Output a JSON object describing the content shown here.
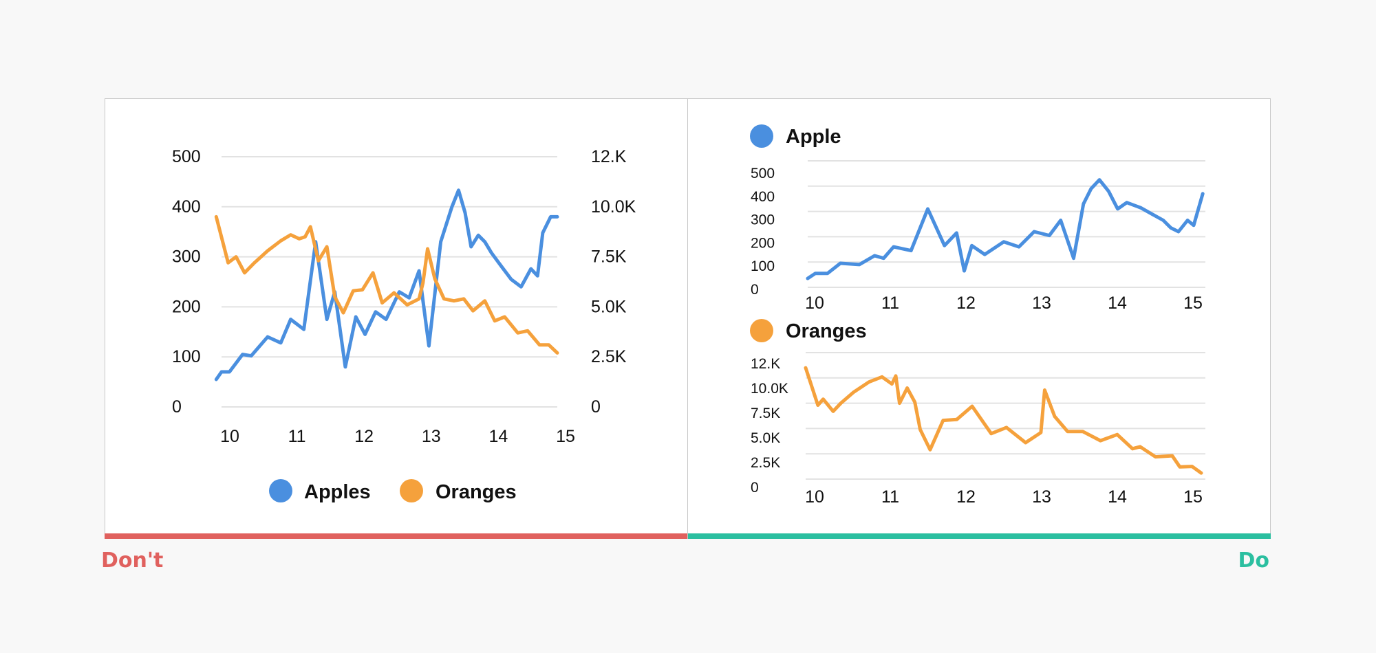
{
  "labels": {
    "dont": "Don't",
    "do": "Do"
  },
  "colors": {
    "apples": "#4a8fdf",
    "oranges": "#f5a13c",
    "dont": "#e0615e",
    "do": "#2bbfa0",
    "grid": "#e2e2e2"
  },
  "chart_data": [
    {
      "id": "dont",
      "type": "line",
      "title": "",
      "dual_axis": true,
      "x_ticks": [
        "10",
        "11",
        "12",
        "13",
        "14",
        "15"
      ],
      "xlim": [
        10,
        15.1
      ],
      "y_left": {
        "ticks": [
          "0",
          "100",
          "200",
          "300",
          "400",
          "500"
        ],
        "ylim": [
          0,
          500
        ]
      },
      "y_right": {
        "ticks": [
          "0",
          "2.5K",
          "5.0K",
          "7.5K",
          "10.0K",
          "12.K"
        ],
        "ylim": [
          0,
          12500
        ]
      },
      "grid": true,
      "legend": {
        "placement": "bottom",
        "items": [
          "Apples",
          "Oranges"
        ]
      },
      "series": [
        {
          "name": "Apples",
          "axis": "left",
          "color": "#4a8fdf",
          "x": [
            9.92,
            10.0,
            10.12,
            10.32,
            10.45,
            10.7,
            10.9,
            11.05,
            11.25,
            11.43,
            11.6,
            11.72,
            11.88,
            12.04,
            12.18,
            12.34,
            12.5,
            12.7,
            12.85,
            13.0,
            13.15,
            13.33,
            13.5,
            13.6,
            13.7,
            13.79,
            13.9,
            14.0,
            14.1,
            14.25,
            14.4,
            14.55,
            14.7,
            14.8,
            14.88,
            15.0,
            15.1
          ],
          "values": [
            55,
            70,
            70,
            105,
            102,
            140,
            128,
            175,
            155,
            330,
            175,
            230,
            80,
            180,
            145,
            190,
            175,
            230,
            218,
            272,
            122,
            330,
            400,
            433,
            388,
            320,
            343,
            330,
            308,
            281,
            255,
            240,
            276,
            262,
            348,
            380,
            380
          ]
        },
        {
          "name": "Oranges",
          "axis": "right",
          "color": "#f5a13c",
          "x": [
            9.92,
            10.1,
            10.22,
            10.35,
            10.5,
            10.7,
            10.9,
            11.05,
            11.18,
            11.27,
            11.35,
            11.47,
            11.6,
            11.72,
            11.85,
            12.0,
            12.14,
            12.3,
            12.44,
            12.62,
            12.82,
            13.0,
            13.06,
            13.13,
            13.24,
            13.38,
            13.53,
            13.68,
            13.82,
            14.0,
            14.15,
            14.3,
            14.5,
            14.65,
            14.83,
            14.97,
            15.1
          ],
          "values": [
            9500,
            7200,
            7500,
            6700,
            7200,
            7800,
            8300,
            8600,
            8400,
            8500,
            9000,
            7300,
            8000,
            5500,
            4700,
            5800,
            5850,
            6700,
            5200,
            5700,
            5100,
            5400,
            6200,
            7900,
            6400,
            5400,
            5300,
            5400,
            4800,
            5300,
            4300,
            4500,
            3700,
            3800,
            3100,
            3100,
            2700
          ]
        }
      ]
    },
    {
      "id": "do-apple",
      "type": "line",
      "title": "",
      "x_ticks": [
        "10",
        "11",
        "12",
        "13",
        "14",
        "15"
      ],
      "xlim": [
        9.92,
        15.1
      ],
      "y_ticks": [
        "0",
        "100",
        "200",
        "300",
        "400",
        "500"
      ],
      "ylim": [
        0,
        500
      ],
      "grid": true,
      "legend": {
        "placement": "top-left",
        "items": [
          "Apple"
        ]
      },
      "series": [
        {
          "name": "Apple",
          "color": "#4a8fdf",
          "x": [
            9.92,
            10.02,
            10.18,
            10.35,
            10.6,
            10.8,
            10.92,
            11.05,
            11.28,
            11.5,
            11.72,
            11.88,
            11.98,
            12.08,
            12.25,
            12.5,
            12.7,
            12.9,
            13.1,
            13.25,
            13.42,
            13.55,
            13.65,
            13.76,
            13.88,
            14.0,
            14.12,
            14.3,
            14.45,
            14.6,
            14.7,
            14.8,
            14.92,
            15.0,
            15.12
          ],
          "values": [
            35,
            55,
            55,
            95,
            90,
            125,
            115,
            160,
            145,
            310,
            165,
            215,
            65,
            165,
            130,
            180,
            160,
            220,
            205,
            265,
            115,
            330,
            390,
            425,
            380,
            310,
            335,
            315,
            290,
            265,
            235,
            220,
            265,
            245,
            370
          ]
        }
      ]
    },
    {
      "id": "do-oranges",
      "type": "line",
      "title": "",
      "x_ticks": [
        "10",
        "11",
        "12",
        "13",
        "14",
        "15"
      ],
      "xlim": [
        9.92,
        15.1
      ],
      "y_ticks": [
        "0",
        "2.5K",
        "5.0K",
        "7.5K",
        "10.0K",
        "12.K"
      ],
      "ylim": [
        0,
        12500
      ],
      "grid": true,
      "legend": {
        "placement": "top-left",
        "items": [
          "Oranges"
        ]
      },
      "series": [
        {
          "name": "Oranges",
          "color": "#f5a13c",
          "x": [
            9.92,
            10.08,
            10.15,
            10.28,
            10.38,
            10.55,
            10.75,
            10.92,
            11.05,
            11.1,
            11.15,
            11.25,
            11.35,
            11.42,
            11.55,
            11.72,
            11.9,
            12.1,
            12.35,
            12.55,
            12.8,
            13.0,
            13.05,
            13.18,
            13.35,
            13.55,
            13.78,
            14.0,
            14.2,
            14.3,
            14.5,
            14.72,
            14.82,
            14.98,
            15.1
          ],
          "values": [
            11000,
            7300,
            7900,
            6700,
            7500,
            8600,
            9600,
            10100,
            9400,
            10200,
            7500,
            9000,
            7600,
            4900,
            2900,
            5800,
            5900,
            7200,
            4500,
            5100,
            3600,
            4600,
            8800,
            6200,
            4700,
            4700,
            3800,
            4400,
            3000,
            3200,
            2200,
            2300,
            1200,
            1250,
            600
          ]
        }
      ]
    }
  ]
}
